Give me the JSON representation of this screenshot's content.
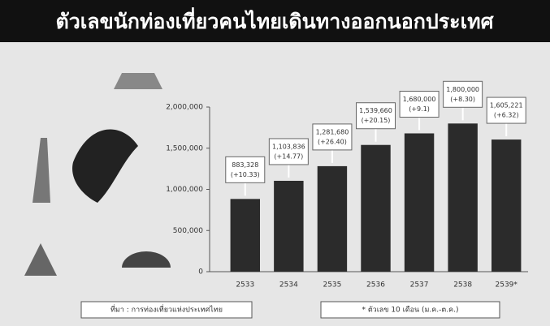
{
  "chart_data": {
    "type": "bar",
    "title": "ตัวเลขนักท่องเที่ยวคนไทยเดินทางออกนอกประเทศ",
    "categories": [
      "2533",
      "2534",
      "2535",
      "2536",
      "2537",
      "2538",
      "2539*"
    ],
    "values": [
      883328,
      1103836,
      1281680,
      1539660,
      1680000,
      1800000,
      1605221
    ],
    "value_labels": [
      "883,328",
      "1,103,836",
      "1,281,680",
      "1,539,660",
      "1,680,000",
      "1,800,000",
      "1,605,221"
    ],
    "growth_labels": [
      "(+10.33)",
      "(+14.77)",
      "(+26.40)",
      "(+20.15)",
      "(+9.1)",
      "(+8.30)",
      "(+6.32)"
    ],
    "color": "#2b2b2b",
    "ylim": [
      0,
      2000000
    ],
    "yticks": [
      {
        "value": 0,
        "label": "0"
      },
      {
        "value": 500000,
        "label": "500,000"
      },
      {
        "value": 1000000,
        "label": "1,000,000"
      },
      {
        "value": 1500000,
        "label": "1,500,000"
      },
      {
        "value": 2000000,
        "label": "2,000,000"
      }
    ],
    "grid": false,
    "source": "ที่มา : การท่องเที่ยวแห่งประเทศไทย",
    "note": "* ตัวเลข 10 เดือน (ม.ค.-ต.ค.)"
  }
}
